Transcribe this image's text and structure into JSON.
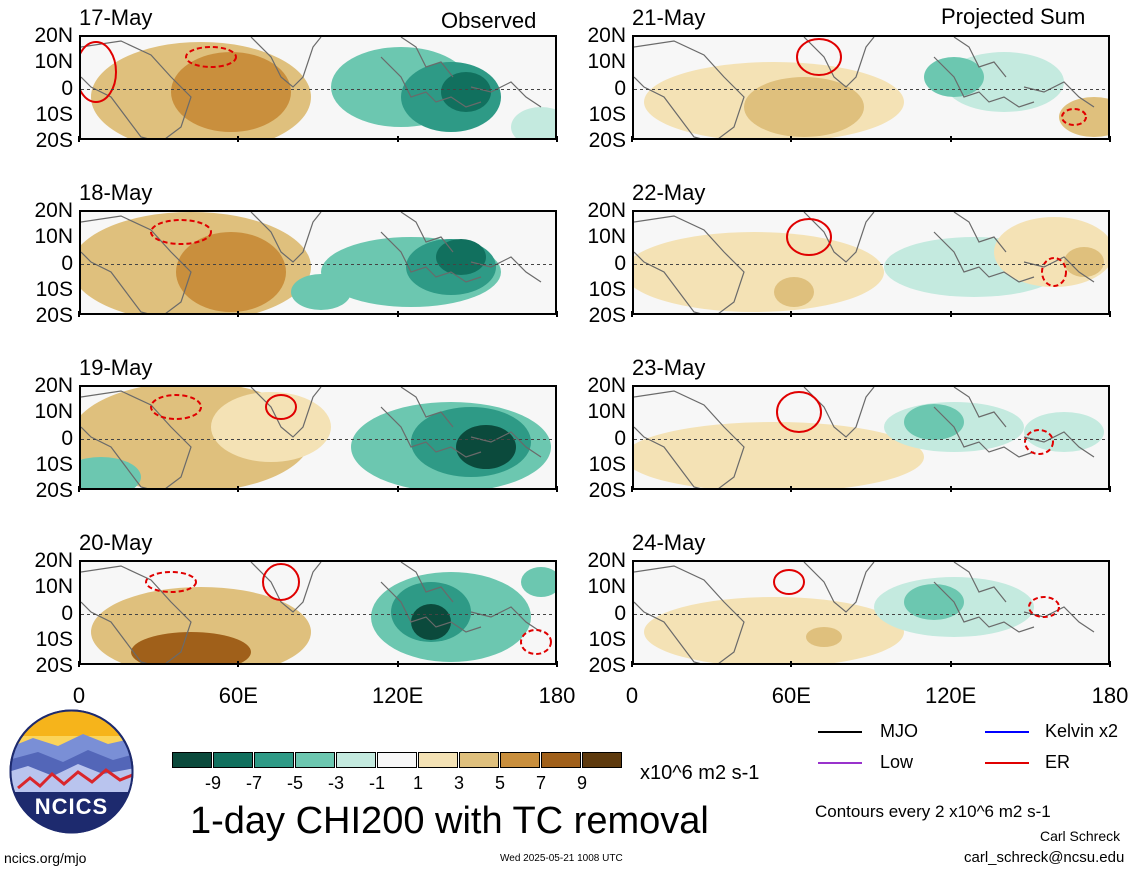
{
  "header": {
    "left_label": "Observed",
    "right_label": "Projected Sum"
  },
  "y_ticks": [
    "20N",
    "10N",
    "0",
    "10S",
    "20S"
  ],
  "x_ticks": [
    "0",
    "60E",
    "120E",
    "180"
  ],
  "panels_left": [
    {
      "date": "17-May"
    },
    {
      "date": "18-May"
    },
    {
      "date": "19-May"
    },
    {
      "date": "20-May"
    }
  ],
  "panels_right": [
    {
      "date": "21-May"
    },
    {
      "date": "22-May"
    },
    {
      "date": "23-May"
    },
    {
      "date": "24-May"
    }
  ],
  "colorbar": {
    "ticks": [
      "-9",
      "-7",
      "-5",
      "-3",
      "-1",
      "1",
      "3",
      "5",
      "7",
      "9"
    ],
    "colors": [
      "#0b4a3c",
      "#11705e",
      "#2e9a86",
      "#6cc7b0",
      "#c4eadf",
      "#f7f7f7",
      "#f4e2b5",
      "#dfc07d",
      "#c98f3d",
      "#a0601a",
      "#5e3a0e"
    ],
    "units": "x10^6 m2 s-1"
  },
  "title": "1-day CHI200 with TC removal",
  "legend": [
    {
      "label": "MJO",
      "color": "#000000"
    },
    {
      "label": "Kelvin x2",
      "color": "#0000ff"
    },
    {
      "label": "Low",
      "color": "#9933cc"
    },
    {
      "label": "ER",
      "color": "#e00000"
    }
  ],
  "contours_note": "Contours every 2 x10^6 m2 s-1",
  "author": "Carl Schreck",
  "email": "carl_schreck@ncsu.edu",
  "site": "ncics.org/mjo",
  "timestamp": "Wed 2025-05-21 1008 UTC",
  "logo_text": "NCICS",
  "chart_data": {
    "type": "heatmap",
    "title": "1-day CHI200 with TC removal",
    "xlabel": "",
    "ylabel": "",
    "x_ticks": [
      "0",
      "60E",
      "120E",
      "180"
    ],
    "y_ticks": [
      "20N",
      "10N",
      "0",
      "10S",
      "20S"
    ],
    "xlim": [
      0,
      180
    ],
    "ylim": [
      -20,
      20
    ],
    "color_levels": [
      -9,
      -7,
      -5,
      -3,
      -1,
      1,
      3,
      5,
      7,
      9
    ],
    "panels": [
      "17-May",
      "18-May",
      "19-May",
      "20-May",
      "21-May",
      "22-May",
      "23-May",
      "24-May"
    ],
    "observed": [
      "17-May",
      "18-May",
      "19-May",
      "20-May"
    ],
    "projected": [
      "21-May",
      "22-May",
      "23-May",
      "24-May"
    ]
  }
}
